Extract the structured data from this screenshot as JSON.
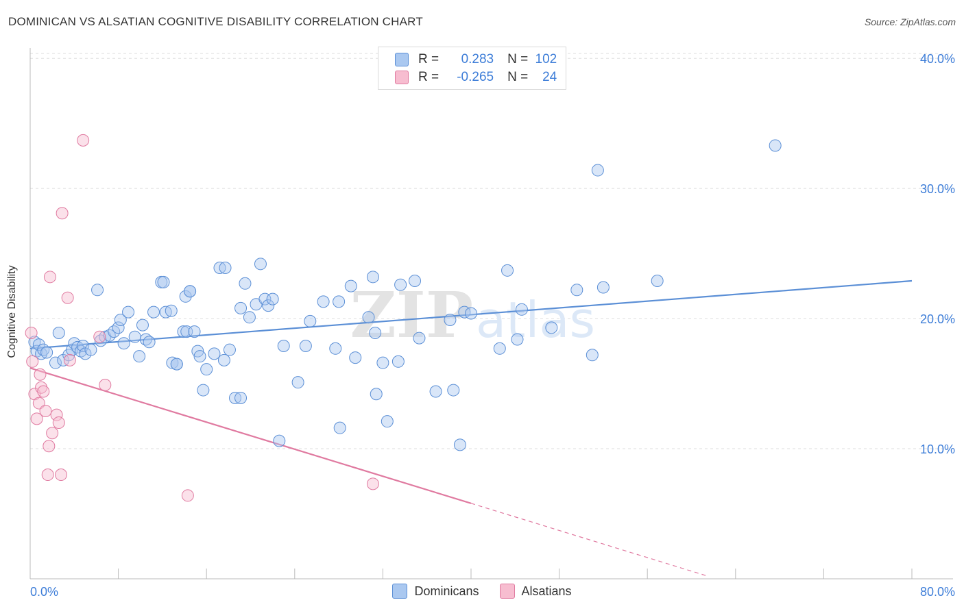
{
  "title": "DOMINICAN VS ALSATIAN COGNITIVE DISABILITY CORRELATION CHART",
  "source": "Source: ZipAtlas.com",
  "watermark": "ZIPatlas",
  "legend": {
    "rows": [
      {
        "r_label": "R =",
        "r_value": "0.283",
        "n_label": "N =",
        "n_value": "102",
        "color": "#aac8f0",
        "border": "#5b8fd6"
      },
      {
        "r_label": "R =",
        "r_value": "-0.265",
        "n_label": "N =",
        "n_value": "24",
        "color": "#f7bdd0",
        "border": "#e07aa0"
      }
    ]
  },
  "bottom_legend": [
    {
      "label": "Dominicans",
      "color": "#aac8f0",
      "border": "#5b8fd6"
    },
    {
      "label": "Alsatians",
      "color": "#f7bdd0",
      "border": "#e07aa0"
    }
  ],
  "chart_data": {
    "type": "scatter",
    "title": "DOMINICAN VS ALSATIAN COGNITIVE DISABILITY CORRELATION CHART",
    "xlabel": "",
    "ylabel": "Cognitive Disability",
    "xlim": [
      0,
      80
    ],
    "ylim": [
      0,
      40.8
    ],
    "x_tick_labels": [
      "0.0%",
      "80.0%"
    ],
    "y_ticks": [
      10,
      20,
      30,
      40
    ],
    "y_tick_labels": [
      "10.0%",
      "20.0%",
      "30.0%",
      "40.0%"
    ],
    "grid": true,
    "series": [
      {
        "name": "Dominicans",
        "color": "#5b8fd6",
        "fill": "rgba(170,200,240,0.45)",
        "trend": {
          "x": [
            0,
            80
          ],
          "y": [
            17.7,
            22.9
          ],
          "dashed_from": null
        },
        "points": [
          [
            0.4,
            18.2
          ],
          [
            0.6,
            17.5
          ],
          [
            0.8,
            18.0
          ],
          [
            1.0,
            17.3
          ],
          [
            1.2,
            17.6
          ],
          [
            1.5,
            17.4
          ],
          [
            2.3,
            16.6
          ],
          [
            2.6,
            18.9
          ],
          [
            3.0,
            16.8
          ],
          [
            3.5,
            17.2
          ],
          [
            3.8,
            17.6
          ],
          [
            4.0,
            18.1
          ],
          [
            4.3,
            17.8
          ],
          [
            4.6,
            17.5
          ],
          [
            4.8,
            17.9
          ],
          [
            5.0,
            17.3
          ],
          [
            5.5,
            17.6
          ],
          [
            6.1,
            22.2
          ],
          [
            6.4,
            18.3
          ],
          [
            6.8,
            18.6
          ],
          [
            7.2,
            18.7
          ],
          [
            7.6,
            19.0
          ],
          [
            8.0,
            19.3
          ],
          [
            8.2,
            19.9
          ],
          [
            8.5,
            18.1
          ],
          [
            8.9,
            20.5
          ],
          [
            9.5,
            18.6
          ],
          [
            9.9,
            17.1
          ],
          [
            10.2,
            19.5
          ],
          [
            10.5,
            18.4
          ],
          [
            10.8,
            18.2
          ],
          [
            11.2,
            20.5
          ],
          [
            11.9,
            22.8
          ],
          [
            12.1,
            22.8
          ],
          [
            12.3,
            20.5
          ],
          [
            12.8,
            20.6
          ],
          [
            12.9,
            16.6
          ],
          [
            13.3,
            16.5
          ],
          [
            13.9,
            19.0
          ],
          [
            14.2,
            19.0
          ],
          [
            14.1,
            21.7
          ],
          [
            14.5,
            22.1
          ],
          [
            14.9,
            19.0
          ],
          [
            15.2,
            17.5
          ],
          [
            15.4,
            17.1
          ],
          [
            15.7,
            14.5
          ],
          [
            16.0,
            16.1
          ],
          [
            16.7,
            17.3
          ],
          [
            17.2,
            23.9
          ],
          [
            17.6,
            16.8
          ],
          [
            17.7,
            23.9
          ],
          [
            18.1,
            17.6
          ],
          [
            18.6,
            13.9
          ],
          [
            19.1,
            13.9
          ],
          [
            19.1,
            20.8
          ],
          [
            19.5,
            22.7
          ],
          [
            19.9,
            20.1
          ],
          [
            20.5,
            21.1
          ],
          [
            20.9,
            24.2
          ],
          [
            21.3,
            21.5
          ],
          [
            21.6,
            21.0
          ],
          [
            22.0,
            21.5
          ],
          [
            22.6,
            10.6
          ],
          [
            23.0,
            17.9
          ],
          [
            24.3,
            15.1
          ],
          [
            25.0,
            17.9
          ],
          [
            25.4,
            19.8
          ],
          [
            26.6,
            21.3
          ],
          [
            27.7,
            17.7
          ],
          [
            28.0,
            21.3
          ],
          [
            28.1,
            11.6
          ],
          [
            29.1,
            22.5
          ],
          [
            29.5,
            17.0
          ],
          [
            30.7,
            20.1
          ],
          [
            31.1,
            23.2
          ],
          [
            31.3,
            18.9
          ],
          [
            31.4,
            14.2
          ],
          [
            32.0,
            16.6
          ],
          [
            32.4,
            12.1
          ],
          [
            33.4,
            16.7
          ],
          [
            33.6,
            22.6
          ],
          [
            34.9,
            22.9
          ],
          [
            35.3,
            18.5
          ],
          [
            36.8,
            14.4
          ],
          [
            38.1,
            19.9
          ],
          [
            38.4,
            14.5
          ],
          [
            39.0,
            10.3
          ],
          [
            39.4,
            20.5
          ],
          [
            40.0,
            20.4
          ],
          [
            42.6,
            17.7
          ],
          [
            43.3,
            23.7
          ],
          [
            44.2,
            18.4
          ],
          [
            44.6,
            20.7
          ],
          [
            47.3,
            19.3
          ],
          [
            49.6,
            22.2
          ],
          [
            51.0,
            17.2
          ],
          [
            51.5,
            31.4
          ],
          [
            52.0,
            22.4
          ],
          [
            56.9,
            22.9
          ],
          [
            67.6,
            33.3
          ],
          [
            13.3,
            16.5
          ],
          [
            14.5,
            22.1
          ]
        ]
      },
      {
        "name": "Alsatians",
        "color": "#e07aa0",
        "fill": "rgba(247,189,208,0.45)",
        "trend": {
          "x": [
            0,
            40
          ],
          "y": [
            16.2,
            5.8
          ],
          "dashed_to": [
            61.5,
            0.2
          ]
        },
        "points": [
          [
            0.1,
            18.9
          ],
          [
            0.2,
            16.7
          ],
          [
            0.4,
            14.2
          ],
          [
            0.6,
            12.3
          ],
          [
            0.8,
            13.5
          ],
          [
            0.9,
            15.7
          ],
          [
            1.0,
            14.7
          ],
          [
            1.2,
            14.4
          ],
          [
            1.4,
            12.9
          ],
          [
            1.6,
            8.0
          ],
          [
            1.7,
            10.2
          ],
          [
            1.8,
            23.2
          ],
          [
            2.0,
            11.2
          ],
          [
            2.4,
            12.6
          ],
          [
            2.6,
            12.0
          ],
          [
            2.8,
            8.0
          ],
          [
            2.9,
            28.1
          ],
          [
            3.4,
            21.6
          ],
          [
            3.6,
            16.8
          ],
          [
            4.8,
            33.7
          ],
          [
            6.3,
            18.6
          ],
          [
            6.8,
            14.9
          ],
          [
            14.3,
            6.4
          ],
          [
            31.1,
            7.3
          ]
        ]
      }
    ]
  }
}
